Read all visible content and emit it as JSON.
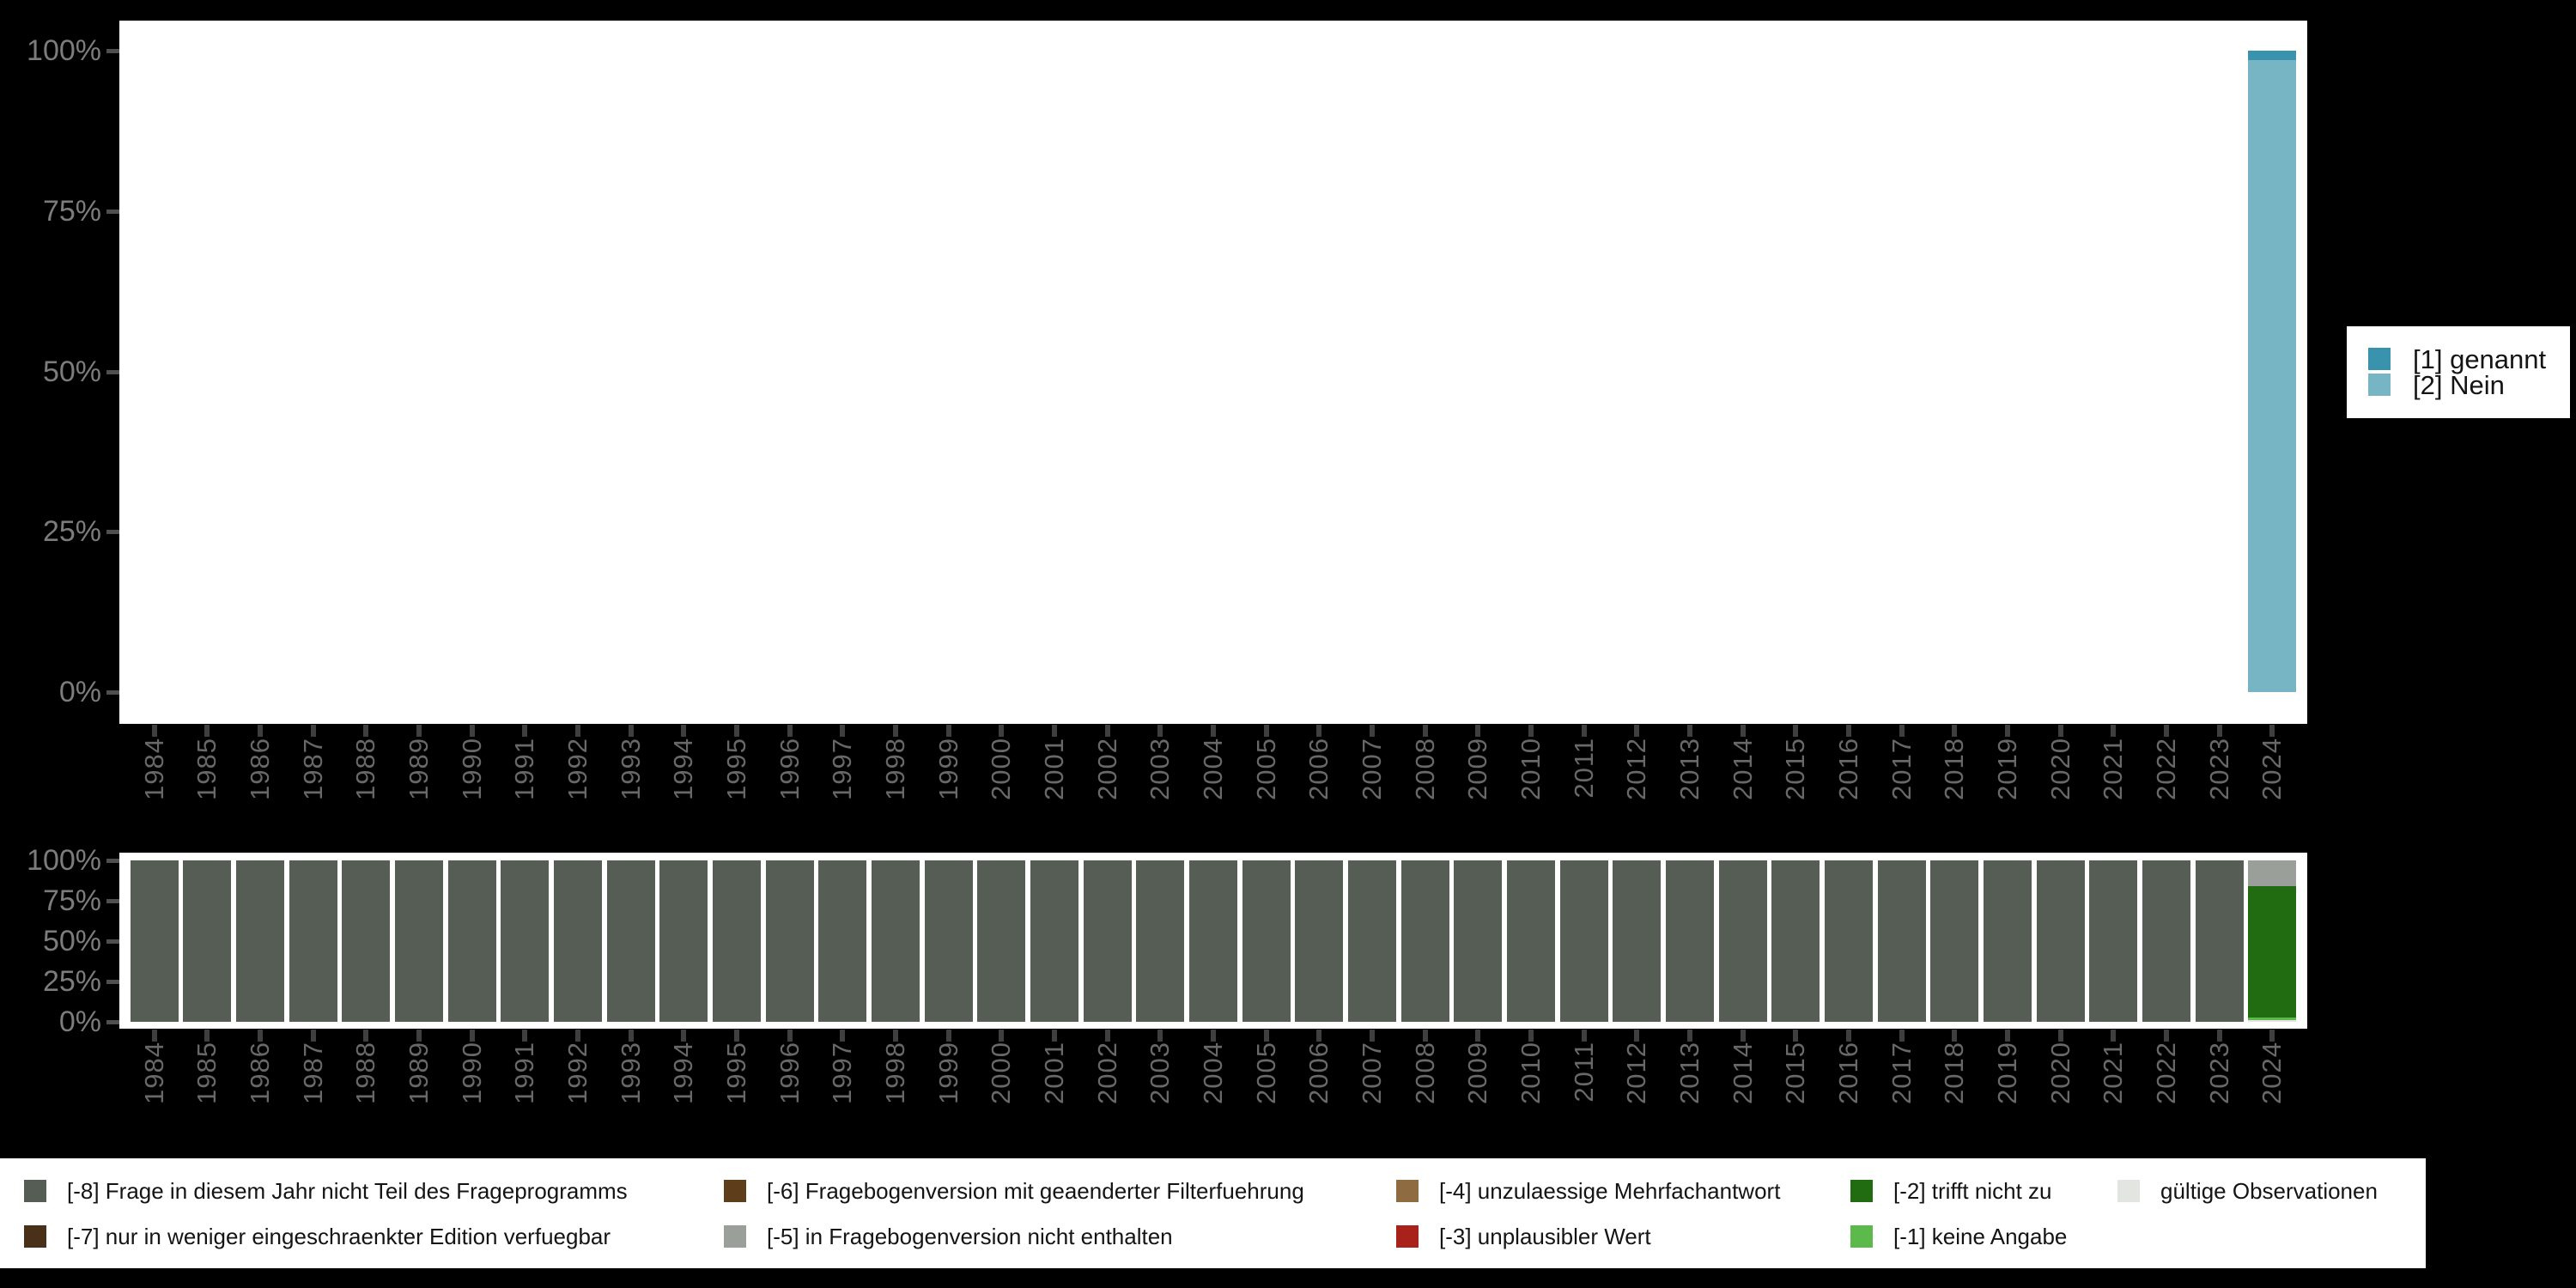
{
  "colors": {
    "background": "#000000",
    "panel": "#ffffff",
    "y_axis_text": "#7c7c7c",
    "x_axis_text": "#686868",
    "tick": "#474747",
    "legend_text": "#141414",
    "legend_background": "#ffffff"
  },
  "chart_data": [
    {
      "id": "values-chart",
      "type": "bar",
      "stacked": true,
      "unit": "percent",
      "title": "",
      "xlabel": "",
      "ylabel": "",
      "ylim": [
        0,
        100
      ],
      "grid": false,
      "legend_position": "right",
      "yticks": [
        {
          "label": "100%",
          "value": 100
        },
        {
          "label": "75%",
          "value": 75
        },
        {
          "label": "50%",
          "value": 50
        },
        {
          "label": "25%",
          "value": 25
        },
        {
          "label": "0%",
          "value": 0
        }
      ],
      "categories": [
        "1984",
        "1985",
        "1986",
        "1987",
        "1988",
        "1989",
        "1990",
        "1991",
        "1992",
        "1993",
        "1994",
        "1995",
        "1996",
        "1997",
        "1998",
        "1999",
        "2000",
        "2001",
        "2002",
        "2003",
        "2004",
        "2005",
        "2006",
        "2007",
        "2008",
        "2009",
        "2010",
        "2011",
        "2012",
        "2013",
        "2014",
        "2015",
        "2016",
        "2017",
        "2018",
        "2019",
        "2020",
        "2021",
        "2022",
        "2023",
        "2024"
      ],
      "series": [
        {
          "name": "[1] genannt",
          "color": "#3a93ac",
          "values": [
            0,
            0,
            0,
            0,
            0,
            0,
            0,
            0,
            0,
            0,
            0,
            0,
            0,
            0,
            0,
            0,
            0,
            0,
            0,
            0,
            0,
            0,
            0,
            0,
            0,
            0,
            0,
            0,
            0,
            0,
            0,
            0,
            0,
            0,
            0,
            0,
            0,
            0,
            0,
            0,
            1.5
          ]
        },
        {
          "name": "[2] Nein",
          "color": "#77b5c4",
          "values": [
            0,
            0,
            0,
            0,
            0,
            0,
            0,
            0,
            0,
            0,
            0,
            0,
            0,
            0,
            0,
            0,
            0,
            0,
            0,
            0,
            0,
            0,
            0,
            0,
            0,
            0,
            0,
            0,
            0,
            0,
            0,
            0,
            0,
            0,
            0,
            0,
            0,
            0,
            0,
            0,
            98.5
          ]
        }
      ]
    },
    {
      "id": "missings-chart",
      "type": "bar",
      "stacked": true,
      "unit": "percent",
      "title": "",
      "xlabel": "",
      "ylabel": "",
      "ylim": [
        0,
        100
      ],
      "grid": false,
      "legend_position": "bottom",
      "yticks": [
        {
          "label": "100%",
          "value": 100
        },
        {
          "label": "75%",
          "value": 75
        },
        {
          "label": "50%",
          "value": 50
        },
        {
          "label": "25%",
          "value": 25
        },
        {
          "label": "0%",
          "value": 0
        }
      ],
      "categories": [
        "1984",
        "1985",
        "1986",
        "1987",
        "1988",
        "1989",
        "1990",
        "1991",
        "1992",
        "1993",
        "1994",
        "1995",
        "1996",
        "1997",
        "1998",
        "1999",
        "2000",
        "2001",
        "2002",
        "2003",
        "2004",
        "2005",
        "2006",
        "2007",
        "2008",
        "2009",
        "2010",
        "2011",
        "2012",
        "2013",
        "2014",
        "2015",
        "2016",
        "2017",
        "2018",
        "2019",
        "2020",
        "2021",
        "2022",
        "2023",
        "2024"
      ],
      "series": [
        {
          "name": "[-8] Frage in diesem Jahr nicht Teil des Frageprogramms",
          "color": "#565d54",
          "values": [
            100,
            100,
            100,
            100,
            100,
            100,
            100,
            100,
            100,
            100,
            100,
            100,
            100,
            100,
            100,
            100,
            100,
            100,
            100,
            100,
            100,
            100,
            100,
            100,
            100,
            100,
            100,
            100,
            100,
            100,
            100,
            100,
            100,
            100,
            100,
            100,
            100,
            100,
            100,
            100,
            0
          ]
        },
        {
          "name": "[-5] in Fragebogenversion nicht enthalten",
          "color": "#9aa099",
          "values": [
            0,
            0,
            0,
            0,
            0,
            0,
            0,
            0,
            0,
            0,
            0,
            0,
            0,
            0,
            0,
            0,
            0,
            0,
            0,
            0,
            0,
            0,
            0,
            0,
            0,
            0,
            0,
            0,
            0,
            0,
            0,
            0,
            0,
            0,
            0,
            0,
            0,
            0,
            0,
            0,
            16
          ]
        },
        {
          "name": "[-2] trifft nicht zu",
          "color": "#216b10",
          "values": [
            0,
            0,
            0,
            0,
            0,
            0,
            0,
            0,
            0,
            0,
            0,
            0,
            0,
            0,
            0,
            0,
            0,
            0,
            0,
            0,
            0,
            0,
            0,
            0,
            0,
            0,
            0,
            0,
            0,
            0,
            0,
            0,
            0,
            0,
            0,
            0,
            0,
            0,
            0,
            0,
            81.5
          ]
        },
        {
          "name": "[-1] keine Angabe",
          "color": "#5cba4c",
          "values": [
            0,
            0,
            0,
            0,
            0,
            0,
            0,
            0,
            0,
            0,
            0,
            0,
            0,
            0,
            0,
            0,
            0,
            0,
            0,
            0,
            0,
            0,
            0,
            0,
            0,
            0,
            0,
            0,
            0,
            0,
            0,
            0,
            0,
            0,
            0,
            0,
            0,
            0,
            0,
            0,
            1.5
          ]
        },
        {
          "name": "gültige Observationen",
          "color": "#e3e6e0",
          "values": [
            0,
            0,
            0,
            0,
            0,
            0,
            0,
            0,
            0,
            0,
            0,
            0,
            0,
            0,
            0,
            0,
            0,
            0,
            0,
            0,
            0,
            0,
            0,
            0,
            0,
            0,
            0,
            0,
            0,
            0,
            0,
            0,
            0,
            0,
            0,
            0,
            0,
            0,
            0,
            0,
            1
          ]
        }
      ]
    }
  ],
  "legend_right": {
    "items": [
      {
        "label": "[1] genannt",
        "color": "#3a93ac"
      },
      {
        "label": "[2] Nein",
        "color": "#77b5c4"
      }
    ]
  },
  "legend_bottom": {
    "columns": [
      [
        {
          "label": "[-8] Frage in diesem Jahr nicht Teil des Frageprogramms",
          "color": "#565d54"
        },
        {
          "label": "[-7] nur in weniger eingeschraenkter Edition verfuegbar",
          "color": "#483118"
        }
      ],
      [
        {
          "label": "[-6] Fragebogenversion mit geaenderter Filterfuehrung",
          "color": "#5e3d1a"
        },
        {
          "label": "[-5] in Fragebogenversion nicht enthalten",
          "color": "#9aa099"
        }
      ],
      [
        {
          "label": "[-4] unzulaessige Mehrfachantwort",
          "color": "#8f6b42"
        },
        {
          "label": "[-3] unplausibler Wert",
          "color": "#a8211a"
        }
      ],
      [
        {
          "label": "[-2] trifft nicht zu",
          "color": "#216b10"
        },
        {
          "label": "[-1] keine Angabe",
          "color": "#5cba4c"
        }
      ],
      [
        {
          "label": "gültige Observationen",
          "color": "#e3e6e0"
        }
      ]
    ]
  }
}
